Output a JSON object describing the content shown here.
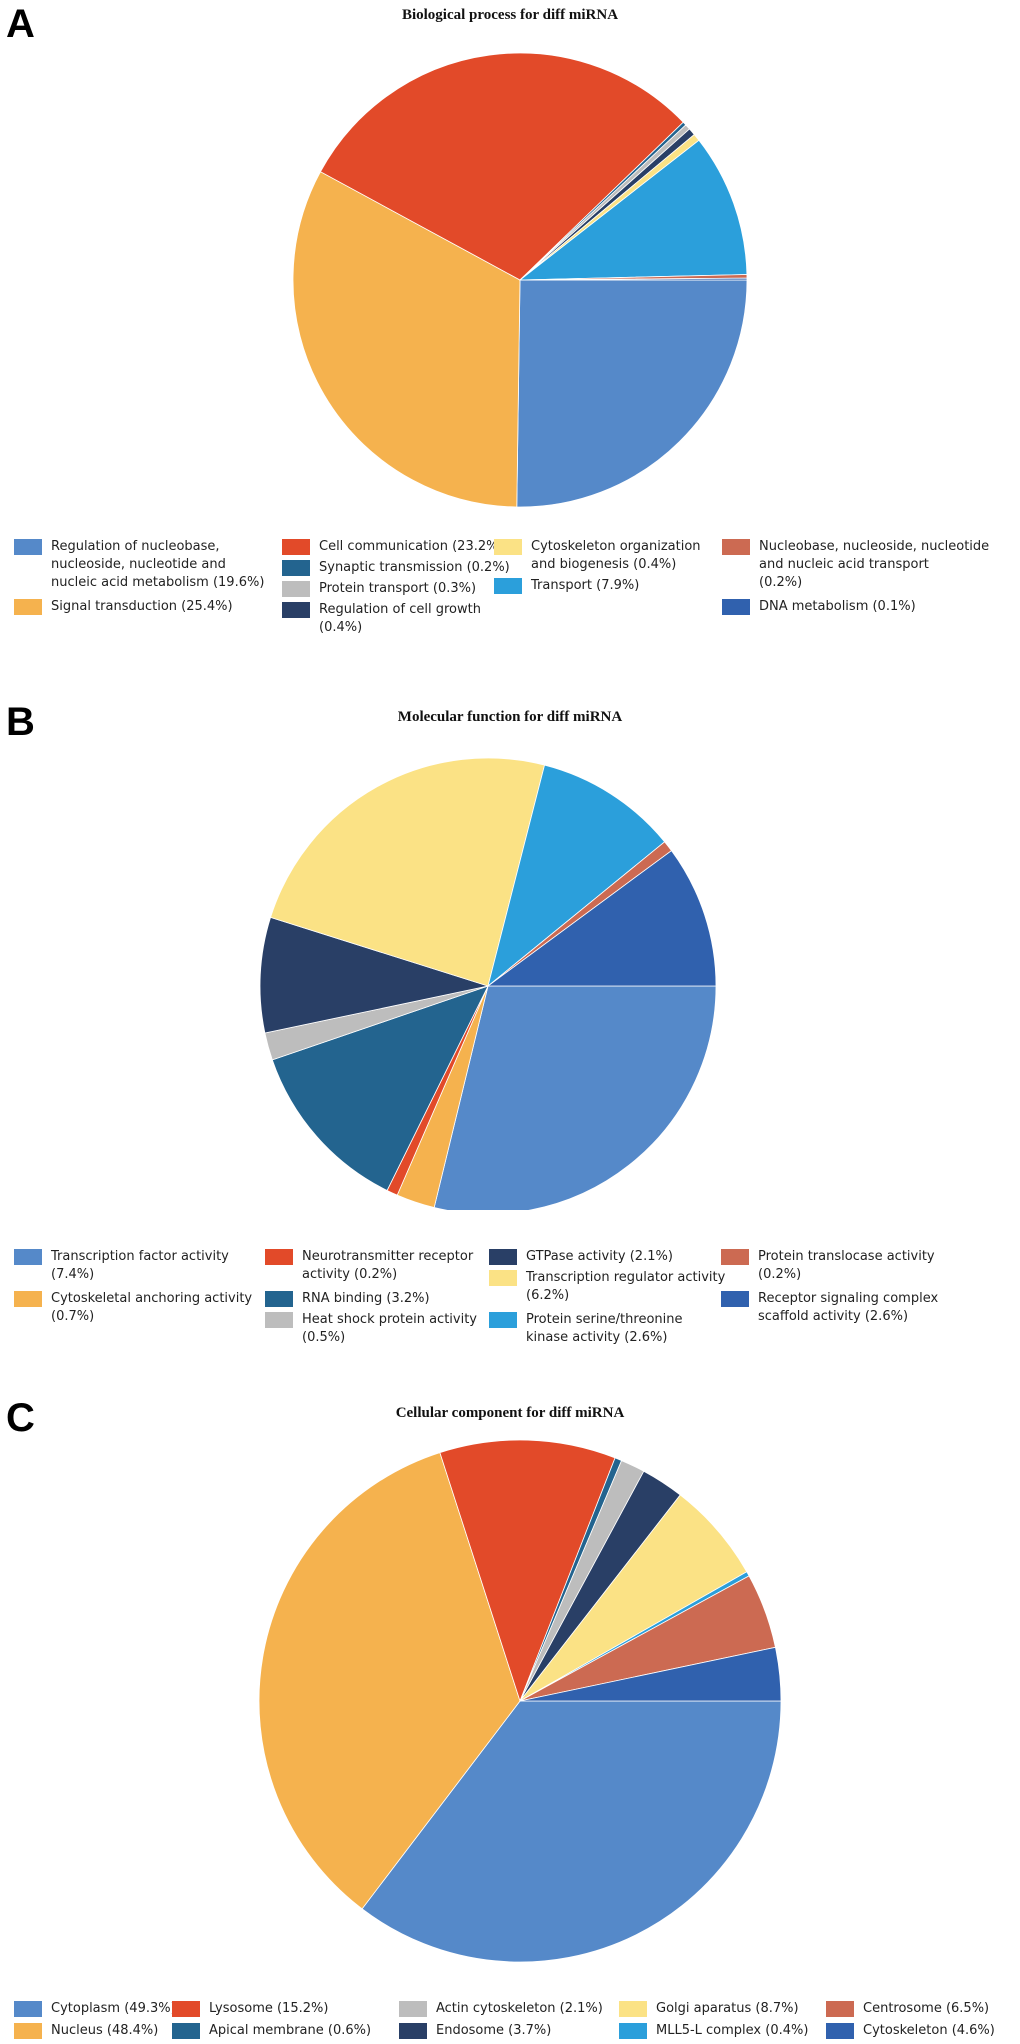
{
  "panels": {
    "a": {
      "letter": "A",
      "title": "Biological process for diff miRNA"
    },
    "b": {
      "letter": "B",
      "title": "Molecular function for diff miRNA"
    },
    "c": {
      "letter": "C",
      "title": "Cellular component for diff miRNA"
    }
  },
  "chart_data": [
    {
      "type": "pie",
      "title": "Biological process for diff miRNA",
      "start_angle_deg": 0,
      "direction": "clockwise",
      "legend_position": "bottom",
      "slices": [
        {
          "label": "Regulation of nucleobase,\nnucleoside, nucleotide and\nnucleic acid metabolism (19.6%)",
          "value": 19.6,
          "color": "#5589C9"
        },
        {
          "label": "Signal transduction (25.4%)",
          "value": 25.4,
          "color": "#F5B24E"
        },
        {
          "label": "Cell communication (23.2%)",
          "value": 23.2,
          "color": "#E24A29"
        },
        {
          "label": "Synaptic transmission (0.2%)",
          "value": 0.2,
          "color": "#23648F"
        },
        {
          "label": "Protein transport (0.3%)",
          "value": 0.3,
          "color": "#BDBDBD"
        },
        {
          "label": "Regulation of cell growth\n(0.4%)",
          "value": 0.4,
          "color": "#293F66"
        },
        {
          "label": "Cytoskeleton organization\nand biogenesis (0.4%)",
          "value": 0.4,
          "color": "#FBE285"
        },
        {
          "label": "Transport (7.9%)",
          "value": 7.9,
          "color": "#2B9FDB"
        },
        {
          "label": "Nucleobase, nucleoside, nucleotide\nand nucleic acid transport\n(0.2%)",
          "value": 0.2,
          "color": "#CC6A52"
        },
        {
          "label": "DNA metabolism (0.1%)",
          "value": 0.1,
          "color": "#3061AE"
        }
      ]
    },
    {
      "type": "pie",
      "title": "Molecular function for diff miRNA",
      "start_angle_deg": 0,
      "direction": "clockwise",
      "legend_position": "bottom",
      "slices": [
        {
          "label": "Transcription factor activity\n(7.4%)",
          "value": 7.4,
          "color": "#5589C9"
        },
        {
          "label": "Cytoskeletal anchoring activity\n(0.7%)",
          "value": 0.7,
          "color": "#F5B24E"
        },
        {
          "label": "Neurotransmitter receptor\nactivity (0.2%)",
          "value": 0.2,
          "color": "#E24A29"
        },
        {
          "label": "RNA binding (3.2%)",
          "value": 3.2,
          "color": "#23648F"
        },
        {
          "label": "Heat shock protein activity\n(0.5%)",
          "value": 0.5,
          "color": "#BDBDBD"
        },
        {
          "label": "GTPase activity (2.1%)",
          "value": 2.1,
          "color": "#293F66"
        },
        {
          "label": "Transcription regulator activity\n(6.2%)",
          "value": 6.2,
          "color": "#FBE285"
        },
        {
          "label": "Protein serine/threonine\nkinase activity (2.6%)",
          "value": 2.6,
          "color": "#2B9FDB"
        },
        {
          "label": "Protein translocase activity\n(0.2%)",
          "value": 0.2,
          "color": "#CC6A52"
        },
        {
          "label": "Receptor signaling complex\nscaffold activity (2.6%)",
          "value": 2.6,
          "color": "#3061AE"
        }
      ]
    },
    {
      "type": "pie",
      "title": "Cellular component for diff miRNA",
      "start_angle_deg": 0,
      "direction": "clockwise",
      "legend_position": "bottom",
      "slices": [
        {
          "label": "Cytoplasm (49.3%)",
          "value": 49.3,
          "color": "#5589C9"
        },
        {
          "label": "Nucleus (48.4%)",
          "value": 48.4,
          "color": "#F5B24E"
        },
        {
          "label": "Lysosome (15.2%)",
          "value": 15.2,
          "color": "#E24A29"
        },
        {
          "label": "Apical membrane (0.6%)",
          "value": 0.6,
          "color": "#23648F"
        },
        {
          "label": "Actin cytoskeleton (2.1%)",
          "value": 2.1,
          "color": "#BDBDBD"
        },
        {
          "label": "Endosome (3.7%)",
          "value": 3.7,
          "color": "#293F66"
        },
        {
          "label": "Golgi aparatus (8.7%)",
          "value": 8.7,
          "color": "#FBE285"
        },
        {
          "label": "MLL5-L complex (0.4%)",
          "value": 0.4,
          "color": "#2B9FDB"
        },
        {
          "label": "Centrosome (6.5%)",
          "value": 6.5,
          "color": "#CC6A52"
        },
        {
          "label": "Cytoskeleton (4.6%)",
          "value": 4.6,
          "color": "#3061AE"
        }
      ]
    }
  ]
}
